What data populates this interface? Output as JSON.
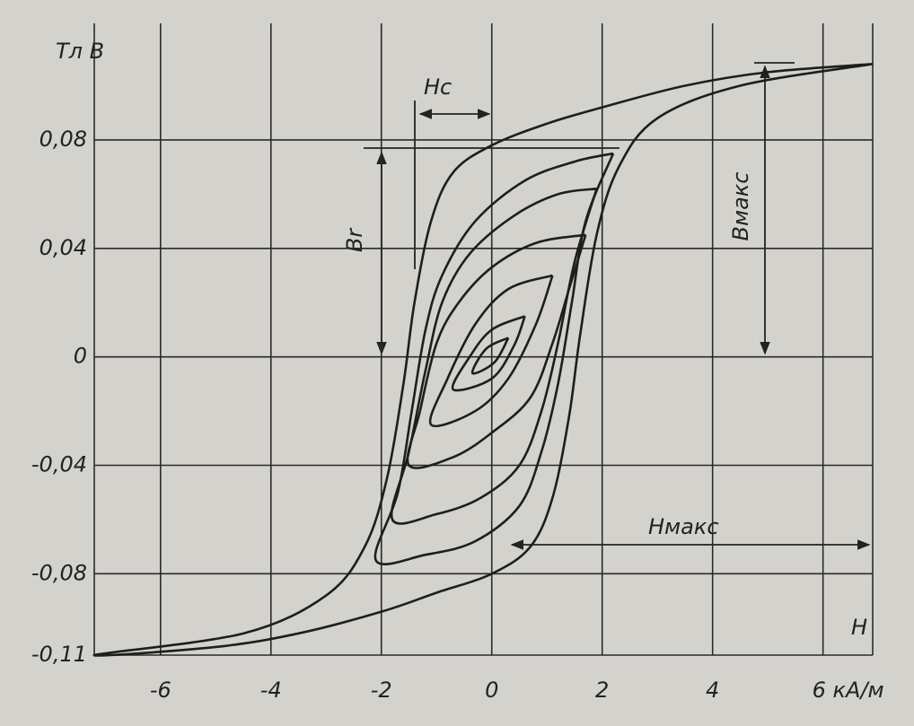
{
  "chart_data": {
    "type": "line",
    "y_label": "Тл B",
    "x_label": "H",
    "annotations": [
      "Hc",
      "Br",
      "Bмакс",
      "Hмакс"
    ],
    "color": "#1e1e1e",
    "grid": true,
    "xlim": [
      -7.2,
      6.9
    ],
    "ylim": [
      -0.11,
      0.123
    ],
    "xticks": [
      -6,
      -4,
      -2,
      0,
      2,
      4,
      {
        "value": 6,
        "label": "6 кА/м"
      }
    ],
    "yticks": [
      {
        "value": -0.11,
        "label": "-0,11"
      },
      {
        "value": -0.08,
        "label": "-0,08"
      },
      {
        "value": -0.04,
        "label": "-0,04"
      },
      0,
      {
        "value": 0.04,
        "label": "0,04"
      },
      {
        "value": 0.08,
        "label": "0,08"
      }
    ],
    "series": [
      {
        "x": [
          6.9,
          5,
          3.5,
          2,
          1,
          0,
          -0.7,
          -1.1,
          -1.4,
          -1.6,
          -1.9,
          -2.3,
          -3,
          -4.5,
          -7.2,
          -5,
          -3.5,
          -2,
          -1,
          0,
          0.7,
          1.1,
          1.4,
          1.6,
          1.9,
          2.3,
          3,
          4.5,
          6.9
        ],
        "values": [
          0.108,
          0.105,
          0.1,
          0.092,
          0.086,
          0.078,
          0.068,
          0.05,
          0.02,
          -0.01,
          -0.045,
          -0.07,
          -0.088,
          -0.102,
          -0.11,
          -0.107,
          -0.102,
          -0.094,
          -0.087,
          -0.08,
          -0.07,
          -0.052,
          -0.022,
          0.008,
          0.045,
          0.07,
          0.088,
          0.1,
          0.108
        ]
      },
      {
        "x": [
          2.2,
          1.5,
          0.6,
          -0.3,
          -0.9,
          -1.2,
          -1.45,
          -1.7,
          -2.1,
          -1.2,
          -0.3,
          0.5,
          0.9,
          1.2,
          1.45,
          1.7,
          2.2
        ],
        "values": [
          0.075,
          0.072,
          0.065,
          0.05,
          0.03,
          0.01,
          -0.02,
          -0.05,
          -0.075,
          -0.073,
          -0.068,
          -0.055,
          -0.035,
          -0.01,
          0.02,
          0.05,
          0.075
        ]
      },
      {
        "x": [
          1.9,
          1.2,
          0.4,
          -0.4,
          -0.9,
          -1.2,
          -1.5,
          -1.8,
          -1.0,
          -0.2,
          0.5,
          0.9,
          1.2,
          1.5,
          1.9
        ],
        "values": [
          0.062,
          0.06,
          0.052,
          0.038,
          0.02,
          -0.005,
          -0.035,
          -0.06,
          -0.058,
          -0.052,
          -0.04,
          -0.02,
          0.005,
          0.035,
          0.062
        ]
      },
      {
        "x": [
          1.7,
          0.8,
          0,
          -0.6,
          -1.0,
          -1.3,
          -1.5,
          -0.7,
          0,
          0.7,
          1.1,
          1.4,
          1.7
        ],
        "values": [
          0.045,
          0.042,
          0.033,
          0.02,
          0.005,
          -0.02,
          -0.04,
          -0.037,
          -0.028,
          -0.015,
          0.005,
          0.025,
          0.045
        ]
      },
      {
        "x": [
          1.1,
          0.3,
          -0.3,
          -0.8,
          -1.1,
          -0.3,
          0.3,
          0.8,
          1.1
        ],
        "values": [
          0.03,
          0.025,
          0.012,
          -0.008,
          -0.025,
          -0.02,
          -0.008,
          0.012,
          0.03
        ]
      },
      {
        "x": [
          0.6,
          0,
          -0.4,
          -0.7,
          0,
          0.4,
          0.6
        ],
        "values": [
          0.015,
          0.01,
          0,
          -0.012,
          -0.008,
          0.004,
          0.015
        ]
      },
      {
        "x": [
          0.3,
          -0.1,
          -0.35,
          0.05,
          0.3
        ],
        "values": [
          0.007,
          0.003,
          -0.006,
          -0.002,
          0.007
        ]
      }
    ]
  }
}
